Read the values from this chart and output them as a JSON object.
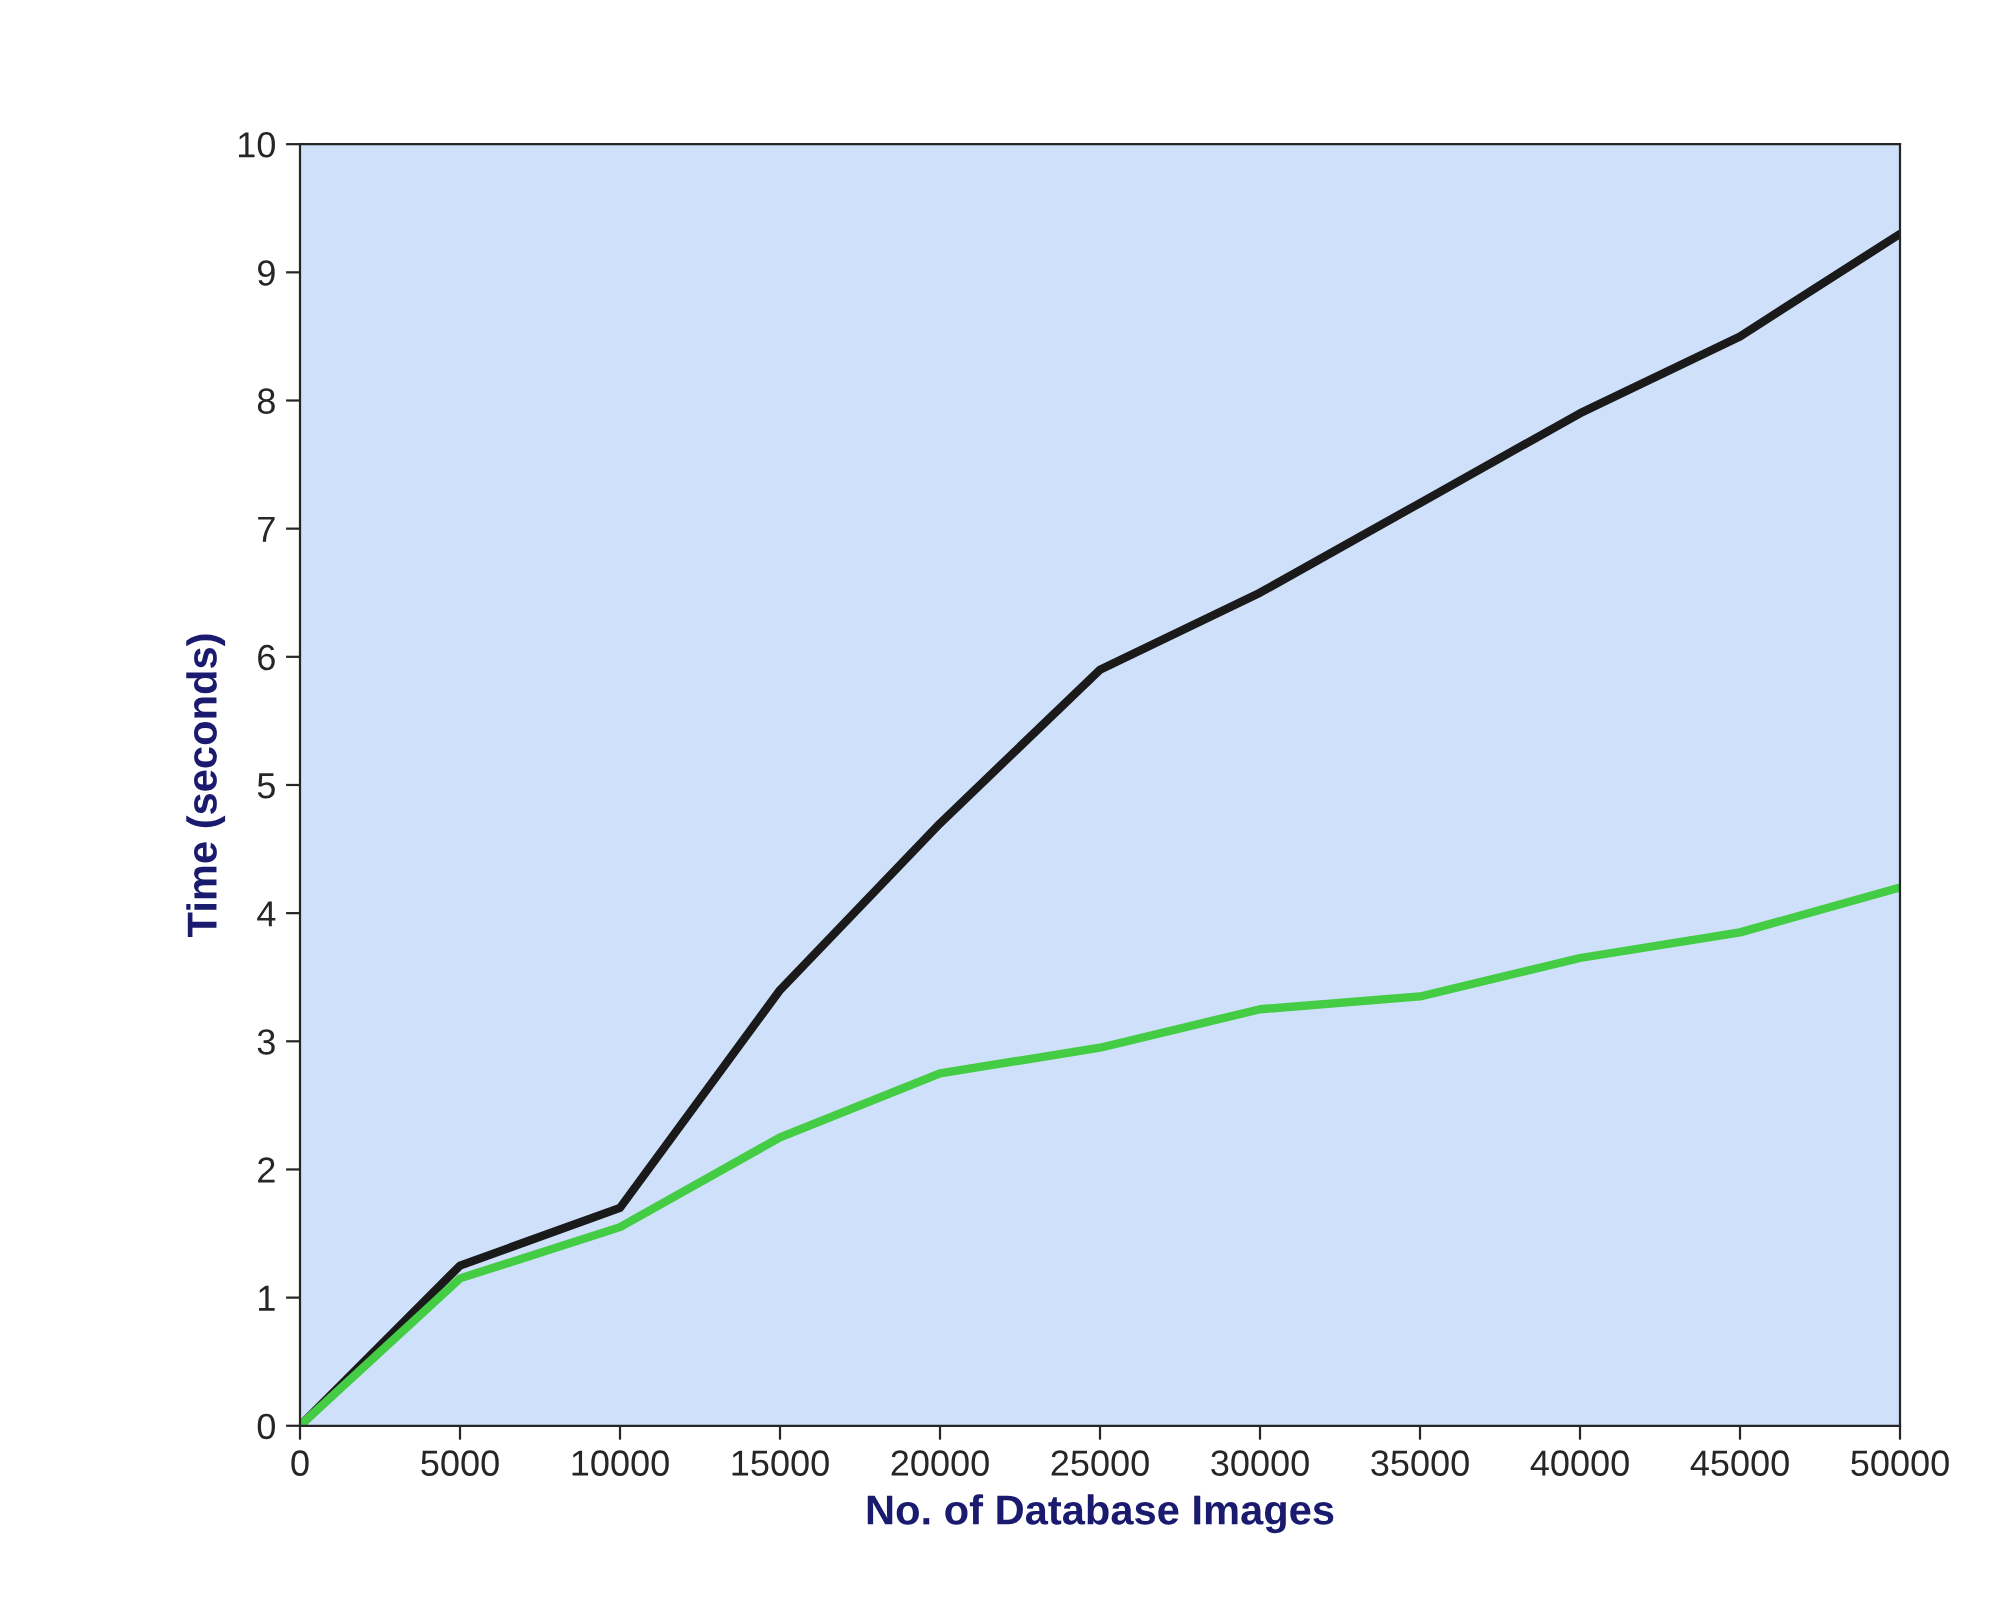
{
  "chart_data": {
    "type": "line",
    "xlabel": "No. of Database Images",
    "ylabel": "Time (seconds)",
    "x": [
      0,
      5000,
      10000,
      15000,
      20000,
      25000,
      30000,
      35000,
      40000,
      45000,
      50000
    ],
    "series": [
      {
        "color": "#1a1a1a",
        "values": [
          0,
          1.25,
          1.7,
          3.4,
          4.7,
          5.9,
          6.5,
          7.2,
          7.9,
          8.5,
          9.3
        ]
      },
      {
        "color": "#44cc44",
        "values": [
          0,
          1.15,
          1.55,
          2.25,
          2.75,
          2.95,
          3.25,
          3.35,
          3.65,
          3.85,
          4.2
        ]
      }
    ],
    "xlim": [
      0,
      50000
    ],
    "xticks": [
      0,
      5000,
      10000,
      15000,
      20000,
      25000,
      30000,
      35000,
      40000,
      45000,
      50000
    ],
    "ylim": [
      0,
      10
    ],
    "yticks": [
      0,
      1,
      2,
      3,
      4,
      5,
      6,
      7,
      8,
      9,
      10
    ],
    "grid": false,
    "legend": false,
    "marker": "none",
    "line_style": "solid"
  }
}
